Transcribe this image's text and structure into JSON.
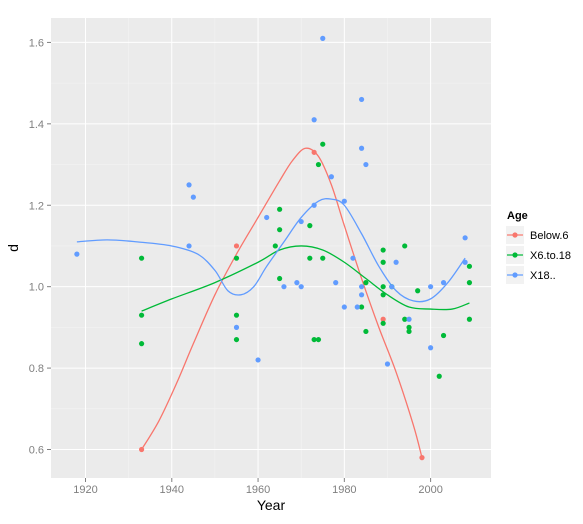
{
  "chart_data": {
    "type": "scatter",
    "xlabel": "Year",
    "ylabel": "d",
    "xlim": [
      1912,
      2014
    ],
    "ylim": [
      0.53,
      1.66
    ],
    "x_ticks": [
      1920,
      1940,
      1960,
      1980,
      2000
    ],
    "y_ticks": [
      0.6,
      0.8,
      1.0,
      1.2,
      1.4,
      1.6
    ],
    "grid": true,
    "legend": {
      "title": "Age",
      "position": "right",
      "entries": [
        "Below.6",
        "X6.to.18",
        "X18.."
      ]
    },
    "series": [
      {
        "name": "Below.6",
        "color": "#F8766D",
        "points": [
          [
            1933,
            0.6
          ],
          [
            1955,
            1.1
          ],
          [
            1973,
            1.33
          ],
          [
            1989,
            0.92
          ],
          [
            1998,
            0.58
          ]
        ],
        "smooth": [
          [
            1933,
            0.6
          ],
          [
            1937,
            0.67
          ],
          [
            1941,
            0.76
          ],
          [
            1945,
            0.86
          ],
          [
            1950,
            0.98
          ],
          [
            1955,
            1.08
          ],
          [
            1960,
            1.17
          ],
          [
            1965,
            1.26
          ],
          [
            1968,
            1.31
          ],
          [
            1971,
            1.34
          ],
          [
            1974,
            1.32
          ],
          [
            1977,
            1.25
          ],
          [
            1980,
            1.15
          ],
          [
            1984,
            1.02
          ],
          [
            1988,
            0.9
          ],
          [
            1992,
            0.79
          ],
          [
            1996,
            0.66
          ],
          [
            1998,
            0.58
          ]
        ]
      },
      {
        "name": "X6.to.18",
        "color": "#00BA38",
        "points": [
          [
            1933,
            1.07
          ],
          [
            1933,
            0.93
          ],
          [
            1933,
            0.86
          ],
          [
            1955,
            1.07
          ],
          [
            1955,
            0.93
          ],
          [
            1955,
            0.87
          ],
          [
            1964,
            1.1
          ],
          [
            1965,
            1.19
          ],
          [
            1965,
            1.14
          ],
          [
            1965,
            1.02
          ],
          [
            1972,
            1.15
          ],
          [
            1972,
            1.07
          ],
          [
            1973,
            0.87
          ],
          [
            1974,
            1.3
          ],
          [
            1974,
            0.87
          ],
          [
            1975,
            1.35
          ],
          [
            1975,
            1.07
          ],
          [
            1984,
            0.95
          ],
          [
            1985,
            1.01
          ],
          [
            1985,
            0.89
          ],
          [
            1989,
            1.09
          ],
          [
            1989,
            1.06
          ],
          [
            1989,
            1.0
          ],
          [
            1989,
            0.98
          ],
          [
            1989,
            0.91
          ],
          [
            1991,
            1.0
          ],
          [
            1994,
            1.1
          ],
          [
            1994,
            0.92
          ],
          [
            1995,
            0.9
          ],
          [
            1995,
            0.89
          ],
          [
            1997,
            0.99
          ],
          [
            2002,
            0.78
          ],
          [
            2003,
            0.88
          ],
          [
            2009,
            1.05
          ],
          [
            2009,
            1.01
          ],
          [
            2009,
            0.92
          ]
        ],
        "smooth": [
          [
            1933,
            0.94
          ],
          [
            1940,
            0.97
          ],
          [
            1950,
            1.01
          ],
          [
            1960,
            1.06
          ],
          [
            1965,
            1.09
          ],
          [
            1970,
            1.1
          ],
          [
            1975,
            1.09
          ],
          [
            1980,
            1.06
          ],
          [
            1985,
            1.02
          ],
          [
            1990,
            0.98
          ],
          [
            1995,
            0.95
          ],
          [
            2000,
            0.945
          ],
          [
            2005,
            0.945
          ],
          [
            2009,
            0.96
          ]
        ]
      },
      {
        "name": "X18..",
        "color": "#619CFF",
        "points": [
          [
            1918,
            1.08
          ],
          [
            1944,
            1.25
          ],
          [
            1944,
            1.1
          ],
          [
            1945,
            1.22
          ],
          [
            1955,
            0.9
          ],
          [
            1960,
            0.82
          ],
          [
            1962,
            1.17
          ],
          [
            1966,
            1.0
          ],
          [
            1969,
            1.01
          ],
          [
            1970,
            1.16
          ],
          [
            1970,
            1.0
          ],
          [
            1973,
            1.41
          ],
          [
            1973,
            1.2
          ],
          [
            1975,
            1.61
          ],
          [
            1977,
            1.27
          ],
          [
            1978,
            1.01
          ],
          [
            1980,
            1.21
          ],
          [
            1980,
            0.95
          ],
          [
            1982,
            1.07
          ],
          [
            1983,
            0.95
          ],
          [
            1984,
            1.46
          ],
          [
            1984,
            1.34
          ],
          [
            1984,
            1.0
          ],
          [
            1984,
            0.98
          ],
          [
            1985,
            1.3
          ],
          [
            1990,
            0.81
          ],
          [
            1991,
            1.0
          ],
          [
            1992,
            1.06
          ],
          [
            1995,
            0.92
          ],
          [
            2000,
            0.85
          ],
          [
            2000,
            1.0
          ],
          [
            2003,
            1.01
          ],
          [
            2008,
            1.12
          ],
          [
            2008,
            1.06
          ]
        ],
        "smooth": [
          [
            1918,
            1.11
          ],
          [
            1925,
            1.115
          ],
          [
            1932,
            1.11
          ],
          [
            1940,
            1.1
          ],
          [
            1946,
            1.08
          ],
          [
            1950,
            1.04
          ],
          [
            1953,
            0.99
          ],
          [
            1956,
            0.98
          ],
          [
            1959,
            1.0
          ],
          [
            1962,
            1.05
          ],
          [
            1966,
            1.11
          ],
          [
            1970,
            1.17
          ],
          [
            1974,
            1.21
          ],
          [
            1977,
            1.215
          ],
          [
            1980,
            1.2
          ],
          [
            1984,
            1.13
          ],
          [
            1988,
            1.05
          ],
          [
            1992,
            0.99
          ],
          [
            1996,
            0.965
          ],
          [
            2000,
            0.97
          ],
          [
            2004,
            1.01
          ],
          [
            2008,
            1.07
          ]
        ]
      }
    ]
  }
}
